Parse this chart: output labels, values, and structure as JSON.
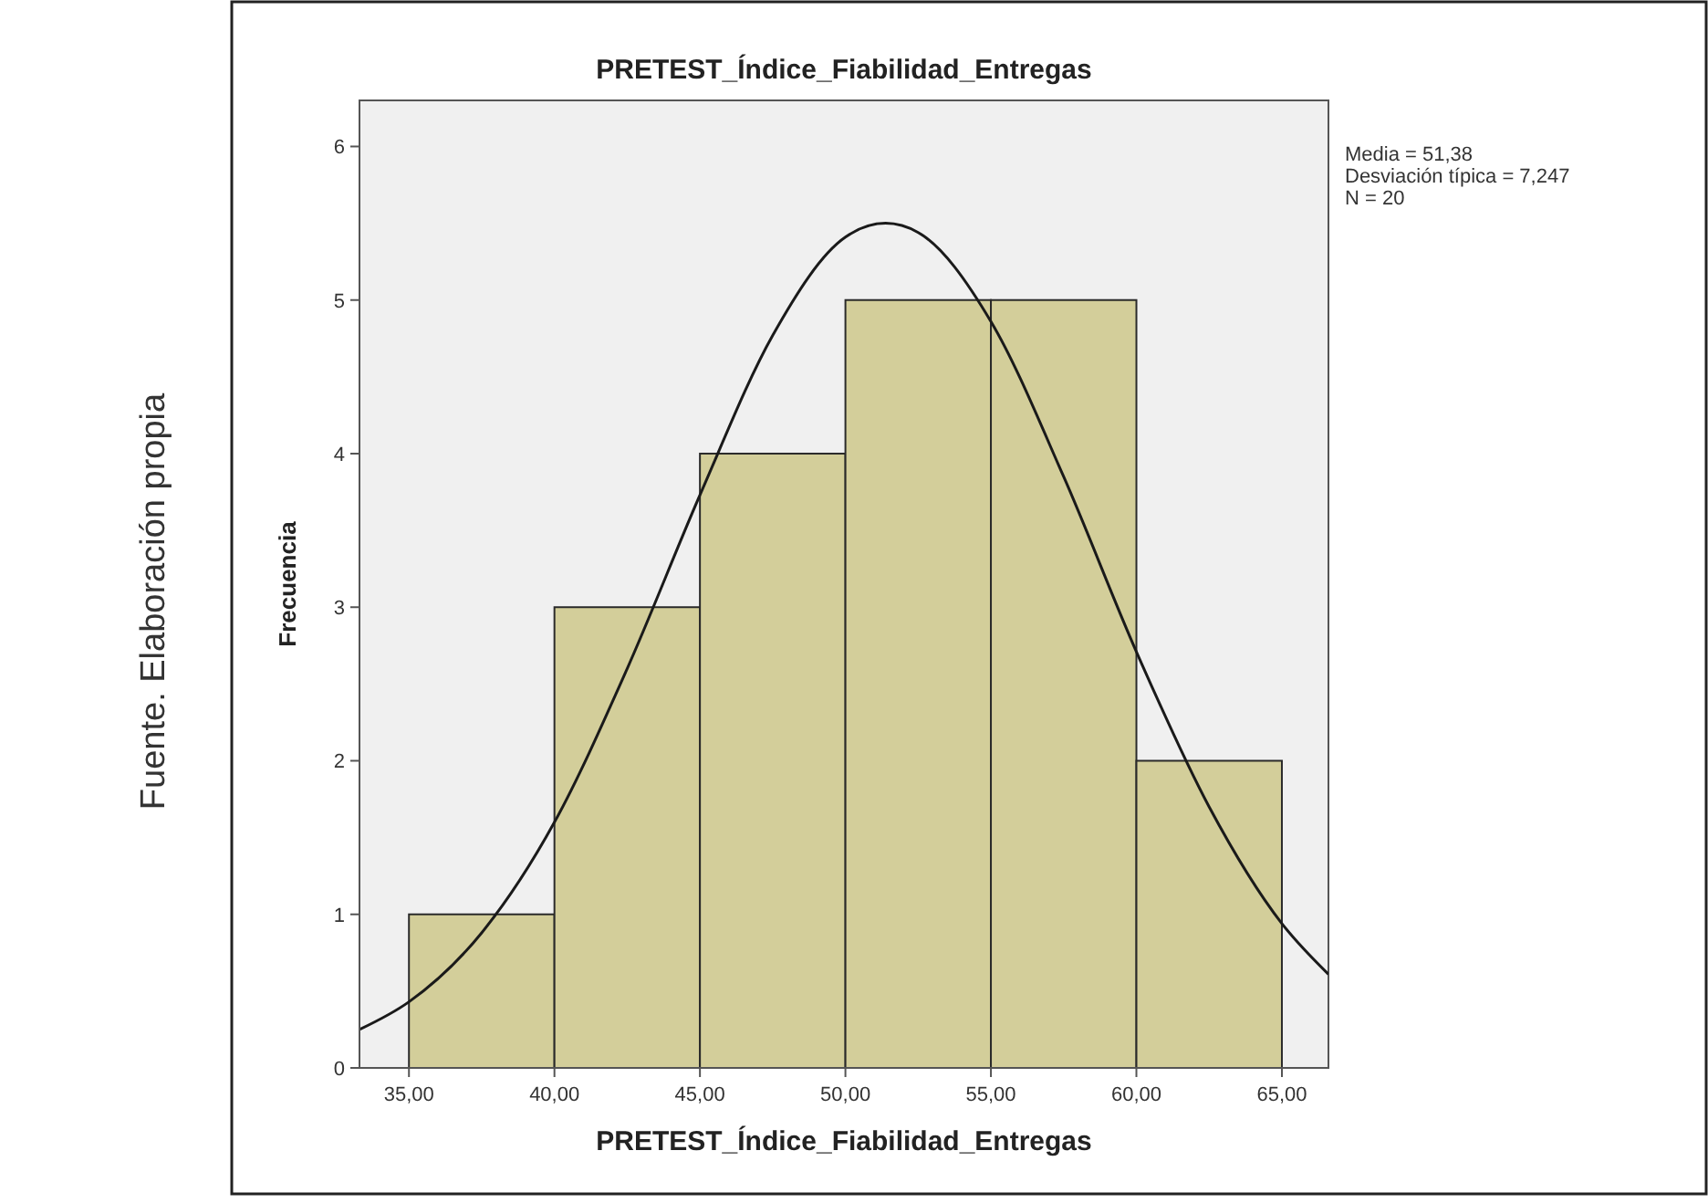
{
  "chart_data": {
    "type": "histogram",
    "title": "PRETEST_Índice_Fiabilidad_Entregas",
    "xlabel": "PRETEST_Índice_Fiabilidad_Entregas",
    "ylabel": "Frecuencia",
    "annotations": [
      "Media = 51,38",
      "Desviación típica = 7,247",
      "N = 20",
      "Fuente. Elaboración propia"
    ],
    "series": [
      {
        "color": "#d3ce9a",
        "bins": [
          35,
          40,
          45,
          50,
          55,
          60,
          65
        ],
        "values": [
          1,
          3,
          4,
          5,
          5,
          2
        ]
      },
      {
        "type": "line",
        "color": "#1a1a1a",
        "x": [
          33.3,
          35,
          37.5,
          40,
          42.5,
          45,
          47.5,
          50,
          51.38,
          52.5,
          55,
          57.5,
          60,
          62.5,
          65,
          66.6
        ],
        "values": [
          0.25,
          0.43,
          0.88,
          1.6,
          2.6,
          3.73,
          4.77,
          5.41,
          5.5,
          5.44,
          4.86,
          3.85,
          2.71,
          1.7,
          0.94,
          0.61
        ]
      }
    ],
    "xlim": [
      33.3,
      66.6
    ],
    "ylim": [
      0,
      6.3
    ],
    "xticks": [
      {
        "value": 35,
        "label": "35,00"
      },
      {
        "value": 40,
        "label": "40,00"
      },
      {
        "value": 45,
        "label": "45,00"
      },
      {
        "value": 50,
        "label": "50,00"
      },
      {
        "value": 55,
        "label": "55,00"
      },
      {
        "value": 60,
        "label": "60,00"
      },
      {
        "value": 65,
        "label": "65,00"
      }
    ],
    "yticks": [
      0,
      1,
      2,
      3,
      4,
      5,
      6
    ],
    "grid": false,
    "marker": "none",
    "line_style": "solid"
  }
}
